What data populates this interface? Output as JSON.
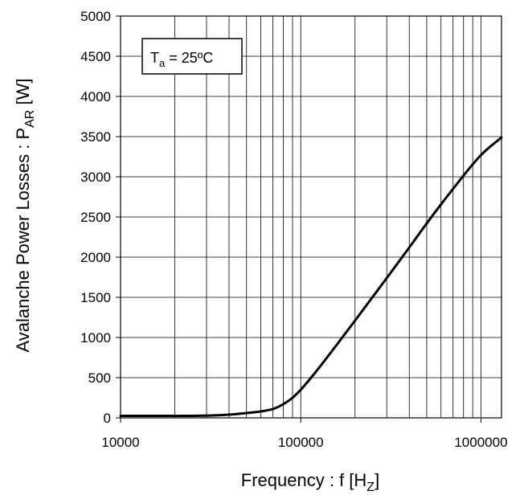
{
  "chart_data": {
    "type": "line",
    "x_scale": "log",
    "xlim": [
      10000,
      1300000
    ],
    "ylim": [
      0,
      5000
    ],
    "grid": true,
    "xlabel": {
      "main": "Frequency : f [H",
      "sub": "Z",
      "end": "]"
    },
    "ylabel": {
      "main": "Avalanche Power Losses : P",
      "sub": "AR",
      "end": " [W]"
    },
    "annotation": {
      "main": "T",
      "sub": "a",
      "end": " = 25ºC",
      "position": "top-left"
    },
    "x_ticks": [
      "10000",
      "100000",
      "1000000"
    ],
    "x_tick_values": [
      10000,
      100000,
      1000000
    ],
    "y_ticks": [
      "0",
      "500",
      "1000",
      "1500",
      "2000",
      "2500",
      "3000",
      "3500",
      "4000",
      "4500",
      "5000"
    ],
    "y_tick_values": [
      0,
      500,
      1000,
      1500,
      2000,
      2500,
      3000,
      3500,
      4000,
      4500,
      5000
    ],
    "color": "#000000",
    "series": [
      {
        "x": [
          10000,
          20000,
          30000,
          40000,
          50000,
          60000,
          70000,
          80000,
          90000,
          100000,
          120000,
          150000,
          200000,
          300000,
          400000,
          500000,
          700000,
          1000000,
          1300000
        ],
        "y": [
          25,
          25,
          28,
          40,
          60,
          80,
          110,
          170,
          250,
          350,
          560,
          840,
          1210,
          1740,
          2120,
          2420,
          2850,
          3270,
          3490
        ]
      }
    ]
  }
}
